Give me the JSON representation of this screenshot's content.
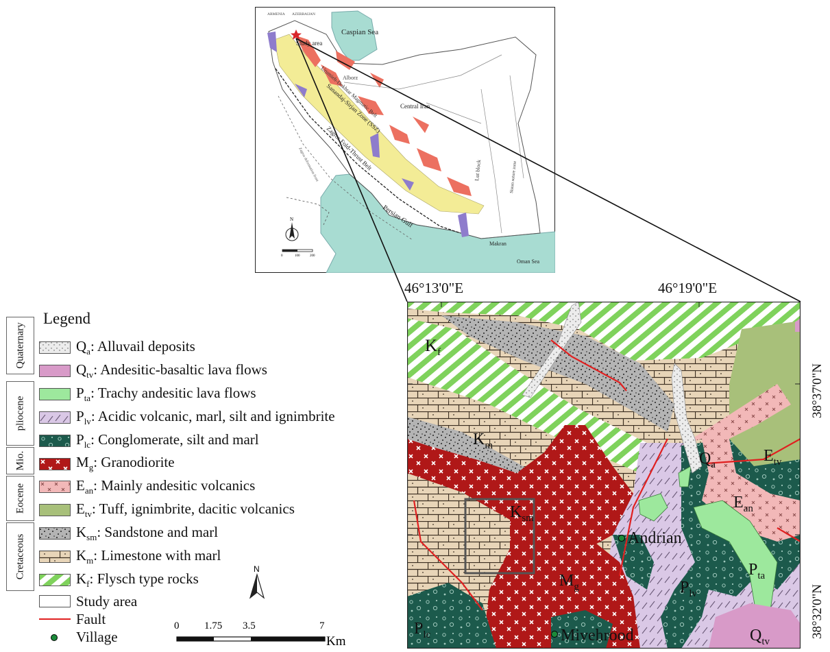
{
  "inset": {
    "labels": {
      "armenia": "ARMENIA",
      "azerbaijan": "AZERBAIJAN",
      "caspian": "Caspian Sea",
      "study_area": "Study area",
      "alborz": "Alborz",
      "umb": "Urumieh-Dokhtar Magmatic Belt",
      "ssz": "Sanandaj-Sirjan Zone (SSZ)",
      "central_iran": "Central Iran",
      "zagros": "Zagros Fold-Thrust Belt",
      "zagros_def": "Zagros deformation front",
      "lut": "Lut block",
      "sistan": "Sistan suture zone",
      "persian_gulf": "Persian Gulf",
      "makran": "Makran",
      "oman": "Oman Sea",
      "north": "N",
      "scale_ticks": [
        "0",
        "100",
        "200"
      ]
    },
    "colors": {
      "water": "#a8dcd2",
      "ssz": "#f3ec96",
      "umb": "#ec7060",
      "ophiolite": "#8e7ccc",
      "study_star": "#d9262a"
    }
  },
  "coords": {
    "top_left": "46°13'0\"E",
    "top_right": "46°19'0\"E",
    "right_top": "38°37'0\"N",
    "right_bottom": "38°32'0\"N"
  },
  "legend": {
    "title": "Legend",
    "eras": [
      "Quaternary",
      "pliocene",
      "Mio.",
      "Eocene",
      "Cretaceous"
    ],
    "items": [
      {
        "symbol": "Q",
        "sub": "a",
        "desc": ": Alluvail deposits",
        "pattern": "qa"
      },
      {
        "symbol": "Q",
        "sub": "tv",
        "desc": ": Andesitic-basaltic lava flows",
        "pattern": "qtv"
      },
      {
        "symbol": "P",
        "sub": "ta",
        "desc": ": Trachy andesitic lava flows",
        "pattern": "pta"
      },
      {
        "symbol": "P",
        "sub": "lv",
        "desc": ": Acidic volcanic, marl, silt and ignimbrite",
        "pattern": "plv"
      },
      {
        "symbol": "P",
        "sub": "lc",
        "desc": ": Conglomerate, silt and marl",
        "pattern": "plc"
      },
      {
        "symbol": "M",
        "sub": "g",
        "desc": ": Granodiorite",
        "pattern": "mg"
      },
      {
        "symbol": "E",
        "sub": "an",
        "desc": ": Mainly andesitic volcanics",
        "pattern": "ean"
      },
      {
        "symbol": "E",
        "sub": "tv",
        "desc": ": Tuff, ignimbrite, dacitic volcanics",
        "pattern": "etv"
      },
      {
        "symbol": "K",
        "sub": "sm",
        "desc": ": Sandstone and marl",
        "pattern": "ksm"
      },
      {
        "symbol": "K",
        "sub": "m",
        "desc": ": Limestone with marl",
        "pattern": "km"
      },
      {
        "symbol": "K",
        "sub": "f",
        "desc": ": Flysch type rocks",
        "pattern": "kf"
      }
    ],
    "study_area": "Study area",
    "fault": "Fault",
    "village": "Village"
  },
  "map_labels": {
    "kf": {
      "s": "K",
      "b": "f"
    },
    "km": {
      "s": "K",
      "b": "m"
    },
    "ksm": {
      "s": "K",
      "b": "sm"
    },
    "qa": {
      "s": "Q",
      "b": "a"
    },
    "etv": {
      "s": "E",
      "b": "tv"
    },
    "ean": {
      "s": "E",
      "b": "an"
    },
    "pta": {
      "s": "P",
      "b": "ta"
    },
    "plv": {
      "s": "P",
      "b": "lv"
    },
    "mg": {
      "s": "M",
      "b": "g"
    },
    "plc": {
      "s": "P",
      "b": "lc"
    },
    "qtv": {
      "s": "Q",
      "b": "tv"
    },
    "andrian": "Andrian",
    "mivehrood": "Mivehrood"
  },
  "scale": {
    "ticks": [
      "0",
      "1.75",
      "3.5",
      "7"
    ],
    "unit": "Km",
    "north": "N"
  },
  "colors": {
    "km": "#e8d5b8",
    "ksm": "#b4b4b4",
    "kf": "#7fd25c",
    "mg": "#b01818",
    "plc": "#1c5a4c",
    "plv": "#dac8e6",
    "ean": "#f2b8b8",
    "etv": "#a8c07a",
    "pta": "#9de89d",
    "qtv": "#d89ac8",
    "qa": "#e4e4e4",
    "fault": "#e02020",
    "village": "#1c8a3a"
  }
}
